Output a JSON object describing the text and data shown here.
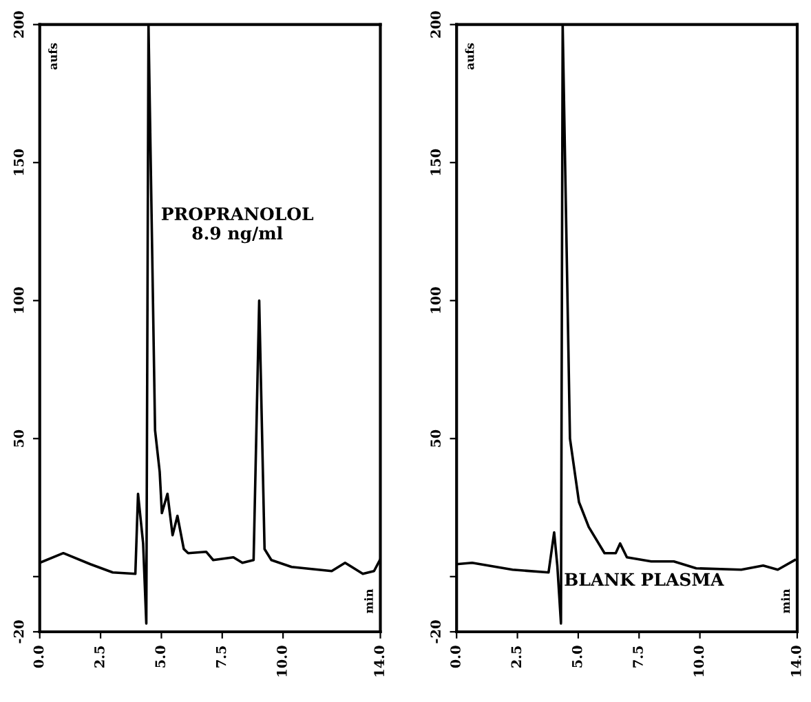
{
  "chart_data": [
    {
      "type": "line",
      "ylabel": "aufs",
      "xlim": [
        0,
        14
      ],
      "ylim": [
        -20,
        200
      ],
      "xticks": [
        {
          "value": 0,
          "label": "0.0"
        },
        {
          "value": 2.5,
          "label": "2.5"
        },
        {
          "value": 5,
          "label": "5.0"
        },
        {
          "value": 7.5,
          "label": "7.5"
        },
        {
          "value": 10,
          "label": "10.0"
        },
        {
          "value": 14,
          "label": "14.0"
        }
      ],
      "yticks": [
        {
          "value": -20,
          "label": "-20"
        },
        {
          "value": 0,
          "label": null
        },
        {
          "value": 50,
          "label": "50"
        },
        {
          "value": 100,
          "label": "100"
        },
        {
          "value": 150,
          "label": "150"
        },
        {
          "value": 200,
          "label": "200"
        }
      ],
      "grid": false,
      "legend": false,
      "annotations": [
        "PROPRANOLOL\n8.9 ng/ml",
        "min"
      ],
      "series": [
        {
          "color": "#000000",
          "x": [
            0.0,
            0.97,
            2.08,
            3.0,
            3.93,
            4.04,
            4.25,
            4.38,
            4.47,
            4.74,
            4.93,
            5.02,
            5.25,
            5.46,
            5.66,
            5.92,
            6.1,
            6.84,
            7.13,
            7.96,
            8.33,
            8.79,
            9.02,
            9.24,
            9.52,
            10.35,
            12.0,
            12.55,
            13.28,
            13.74,
            13.98
          ],
          "values": [
            5,
            8.5,
            4.5,
            1.5,
            1,
            30,
            12,
            -17,
            200,
            53,
            38,
            23,
            30,
            15,
            22,
            10,
            8.5,
            9,
            6,
            7,
            5,
            6,
            100,
            10,
            6,
            3.5,
            2,
            5,
            1,
            2,
            6
          ]
        }
      ]
    },
    {
      "type": "line",
      "ylabel": "aufs",
      "xlim": [
        0,
        14
      ],
      "ylim": [
        -20,
        200
      ],
      "xticks": [
        {
          "value": 0,
          "label": "0.0"
        },
        {
          "value": 2.5,
          "label": "2.5"
        },
        {
          "value": 5,
          "label": "5.0"
        },
        {
          "value": 7.5,
          "label": "7.5"
        },
        {
          "value": 10,
          "label": "10.0"
        },
        {
          "value": 14,
          "label": "14.0"
        }
      ],
      "yticks": [
        {
          "value": -20,
          "label": "-20"
        },
        {
          "value": 0,
          "label": null
        },
        {
          "value": 50,
          "label": "50"
        },
        {
          "value": 100,
          "label": "100"
        },
        {
          "value": 150,
          "label": "150"
        },
        {
          "value": 200,
          "label": "200"
        }
      ],
      "grid": false,
      "legend": false,
      "annotations": [
        "BLANK PLASMA",
        "min"
      ],
      "series": [
        {
          "color": "#000000",
          "x": [
            0,
            0.64,
            2.3,
            3.78,
            4.01,
            4.14,
            4.29,
            4.36,
            4.66,
            5.03,
            5.12,
            5.43,
            6.08,
            6.54,
            6.72,
            7.0,
            8.0,
            8.93,
            9.85,
            11.7,
            12.6,
            13.2,
            13.9
          ],
          "values": [
            4.5,
            5,
            2.5,
            1.5,
            16,
            4,
            -17,
            200,
            50,
            27,
            25,
            18,
            8.5,
            8.5,
            12,
            7,
            5.5,
            5.5,
            3,
            2.5,
            4,
            2.5,
            6
          ]
        }
      ]
    }
  ]
}
